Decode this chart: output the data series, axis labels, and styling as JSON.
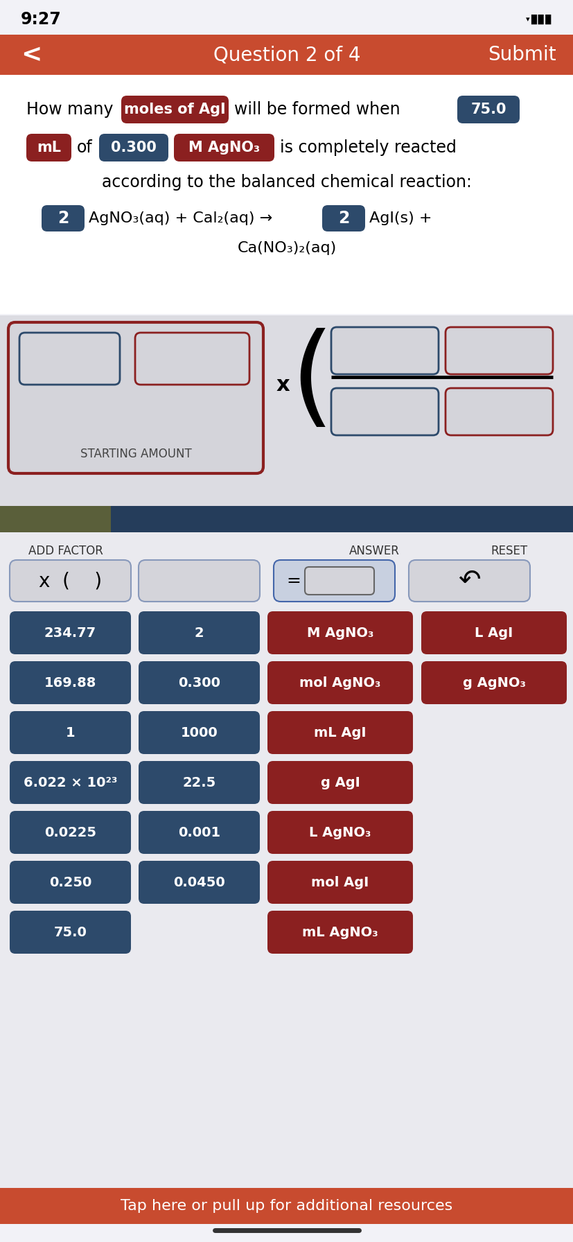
{
  "bg_color": "#f2f2f7",
  "header_color": "#c84b2f",
  "header_text": "Question 2 of 4",
  "header_submit": "Submit",
  "time_text": "9:27",
  "dark_blue": "#2d4a6b",
  "dark_red": "#8b2020",
  "white": "#ffffff",
  "dark_olive": "#5a5f3a",
  "navy": "#253d5b",
  "bottom_bar_text": "Tap here or pull up for additional resources",
  "num_buttons_col1": [
    "234.77",
    "169.88",
    "1",
    "6.022 × 10²³",
    "0.0225",
    "0.250",
    "75.0"
  ],
  "num_buttons_col2": [
    "2",
    "0.300",
    "1000",
    "22.5",
    "0.001",
    "0.0450"
  ],
  "label_buttons_col3": [
    "M AgNO₃",
    "mol AgNO₃",
    "mL AgI",
    "g AgI",
    "L AgNO₃",
    "mol AgI",
    "mL AgNO₃"
  ],
  "label_buttons_col4": [
    "L AgI",
    "g AgNO₃"
  ]
}
